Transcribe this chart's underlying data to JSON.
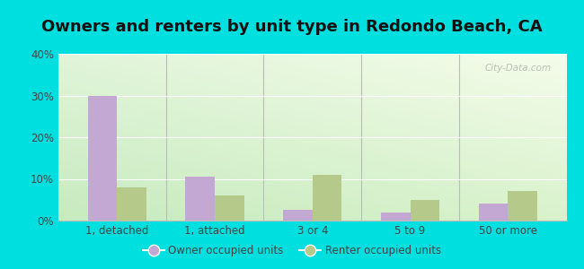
{
  "title": "Owners and renters by unit type in Redondo Beach, CA",
  "categories": [
    "1, detached",
    "1, attached",
    "3 or 4",
    "5 to 9",
    "50 or more"
  ],
  "owner_values": [
    30,
    10.5,
    2.5,
    2,
    4
  ],
  "renter_values": [
    8,
    6,
    11,
    5,
    7
  ],
  "owner_color": "#c4a8d4",
  "renter_color": "#b5c98a",
  "background_outer": "#00dfdf",
  "background_plot_topleft": "#d8edd8",
  "background_plot_topright": "#f5faf0",
  "background_plot_bottom": "#c8e8c8",
  "ylim": [
    0,
    40
  ],
  "yticks": [
    0,
    10,
    20,
    30,
    40
  ],
  "ytick_labels": [
    "0%",
    "10%",
    "20%",
    "30%",
    "40%"
  ],
  "legend_owner": "Owner occupied units",
  "legend_renter": "Renter occupied units",
  "title_fontsize": 13,
  "bar_width": 0.3,
  "watermark": "City-Data.com"
}
